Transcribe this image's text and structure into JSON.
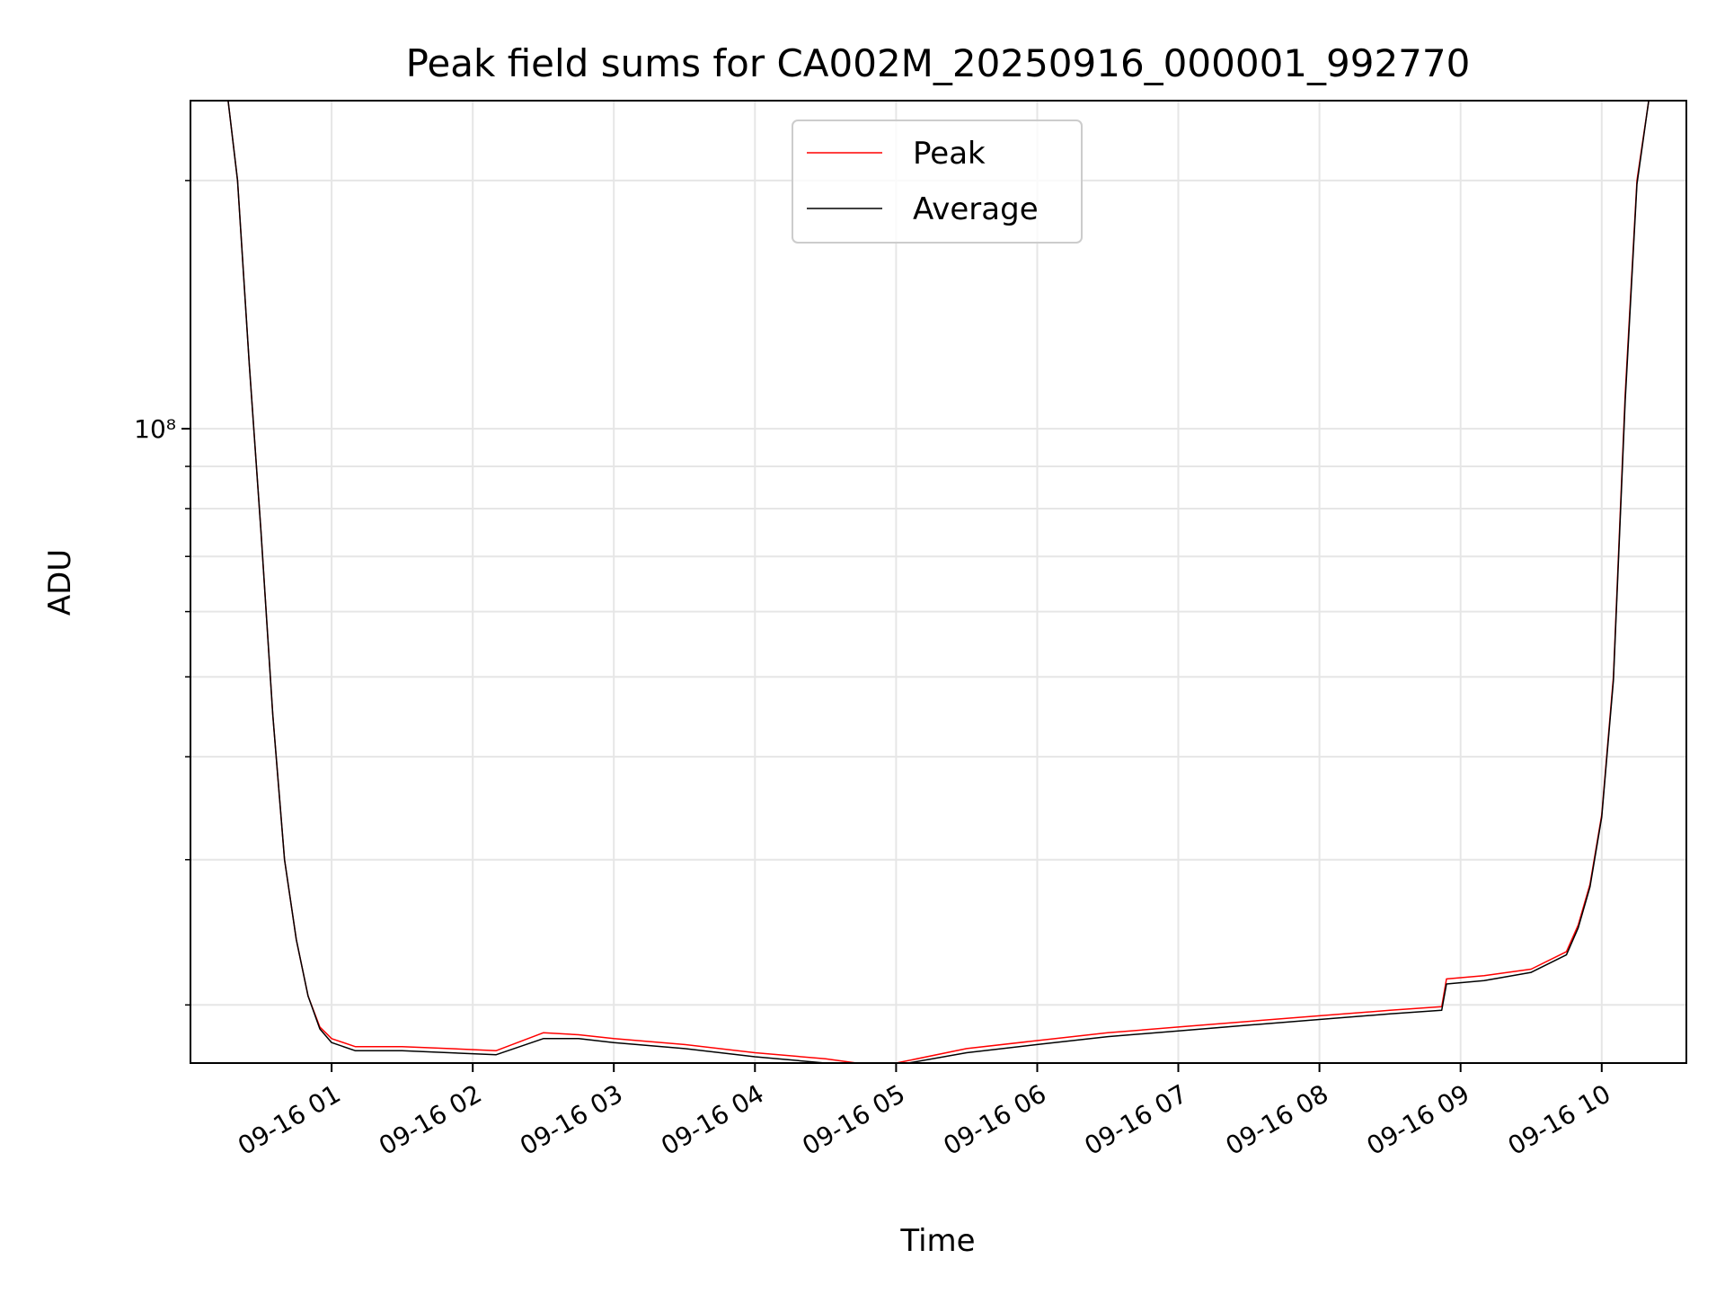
{
  "chart_data": {
    "type": "line",
    "title": "Peak field sums for CA002M_20250916_000001_992770",
    "xlabel": "Time",
    "ylabel": "ADU",
    "y_scale": "log",
    "ylim": [
      17000000,
      250000000
    ],
    "xlim": [
      "2025-09-16 00:00",
      "2025-09-16 10:36"
    ],
    "y_tick_labels": [
      "10⁸"
    ],
    "y_major_ticks": [
      100000000
    ],
    "y_minor_ticks": [
      20000000,
      30000000,
      40000000,
      50000000,
      60000000,
      70000000,
      80000000,
      90000000,
      200000000
    ],
    "x_ticks": [
      "2025-09-16 01:00",
      "2025-09-16 02:00",
      "2025-09-16 03:00",
      "2025-09-16 04:00",
      "2025-09-16 05:00",
      "2025-09-16 06:00",
      "2025-09-16 07:00",
      "2025-09-16 08:00",
      "2025-09-16 09:00",
      "2025-09-16 10:00"
    ],
    "x_tick_labels": [
      "09-16 01",
      "09-16 02",
      "09-16 03",
      "09-16 04",
      "09-16 05",
      "09-16 06",
      "09-16 07",
      "09-16 08",
      "09-16 09",
      "09-16 10"
    ],
    "grid": true,
    "legend_position": "top-center",
    "series": [
      {
        "name": "Peak",
        "color": "#ff0000",
        "x": [
          "2025-09-16 00:16",
          "2025-09-16 00:20",
          "2025-09-16 00:25",
          "2025-09-16 00:30",
          "2025-09-16 00:35",
          "2025-09-16 00:40",
          "2025-09-16 00:45",
          "2025-09-16 00:50",
          "2025-09-16 00:55",
          "2025-09-16 01:00",
          "2025-09-16 01:10",
          "2025-09-16 01:30",
          "2025-09-16 01:50",
          "2025-09-16 02:10",
          "2025-09-16 02:30",
          "2025-09-16 02:45",
          "2025-09-16 03:00",
          "2025-09-16 03:30",
          "2025-09-16 04:00",
          "2025-09-16 04:30",
          "2025-09-16 04:50",
          "2025-09-16 05:00",
          "2025-09-16 05:30",
          "2025-09-16 06:00",
          "2025-09-16 06:30",
          "2025-09-16 07:00",
          "2025-09-16 07:30",
          "2025-09-16 08:00",
          "2025-09-16 08:30",
          "2025-09-16 08:52",
          "2025-09-16 08:54",
          "2025-09-16 09:10",
          "2025-09-16 09:30",
          "2025-09-16 09:45",
          "2025-09-16 09:50",
          "2025-09-16 09:55",
          "2025-09-16 10:00",
          "2025-09-16 10:05",
          "2025-09-16 10:10",
          "2025-09-16 10:15",
          "2025-09-16 10:20"
        ],
        "y": [
          250000000,
          200000000,
          120000000,
          75000000,
          45000000,
          30000000,
          24000000,
          20500000,
          18800000,
          18200000,
          17800000,
          17800000,
          17700000,
          17600000,
          18500000,
          18400000,
          18200000,
          17900000,
          17500000,
          17200000,
          16900000,
          17000000,
          17700000,
          18100000,
          18500000,
          18800000,
          19100000,
          19400000,
          19700000,
          19900000,
          21500000,
          21700000,
          22100000,
          23200000,
          25000000,
          28000000,
          34000000,
          50000000,
          110000000,
          200000000,
          250000000
        ]
      },
      {
        "name": "Average",
        "color": "#000000",
        "x": [
          "2025-09-16 00:16",
          "2025-09-16 00:20",
          "2025-09-16 00:25",
          "2025-09-16 00:30",
          "2025-09-16 00:35",
          "2025-09-16 00:40",
          "2025-09-16 00:45",
          "2025-09-16 00:50",
          "2025-09-16 00:55",
          "2025-09-16 01:00",
          "2025-09-16 01:10",
          "2025-09-16 01:30",
          "2025-09-16 01:50",
          "2025-09-16 02:10",
          "2025-09-16 02:30",
          "2025-09-16 02:45",
          "2025-09-16 03:00",
          "2025-09-16 03:30",
          "2025-09-16 04:00",
          "2025-09-16 04:30",
          "2025-09-16 04:50",
          "2025-09-16 05:00",
          "2025-09-16 05:30",
          "2025-09-16 06:00",
          "2025-09-16 06:30",
          "2025-09-16 07:00",
          "2025-09-16 07:30",
          "2025-09-16 08:00",
          "2025-09-16 08:30",
          "2025-09-16 08:52",
          "2025-09-16 08:54",
          "2025-09-16 09:10",
          "2025-09-16 09:30",
          "2025-09-16 09:45",
          "2025-09-16 09:50",
          "2025-09-16 09:55",
          "2025-09-16 10:00",
          "2025-09-16 10:05",
          "2025-09-16 10:10",
          "2025-09-16 10:15",
          "2025-09-16 10:20"
        ],
        "y": [
          250000000,
          200000000,
          120000000,
          75000000,
          45000000,
          30000000,
          24000000,
          20500000,
          18700000,
          18000000,
          17600000,
          17600000,
          17500000,
          17400000,
          18200000,
          18200000,
          18000000,
          17700000,
          17300000,
          17000000,
          16800000,
          16900000,
          17500000,
          17900000,
          18300000,
          18600000,
          18900000,
          19200000,
          19500000,
          19700000,
          21200000,
          21400000,
          21900000,
          23000000,
          24800000,
          27800000,
          33800000,
          49500000,
          108000000,
          198000000,
          250000000
        ]
      }
    ]
  }
}
